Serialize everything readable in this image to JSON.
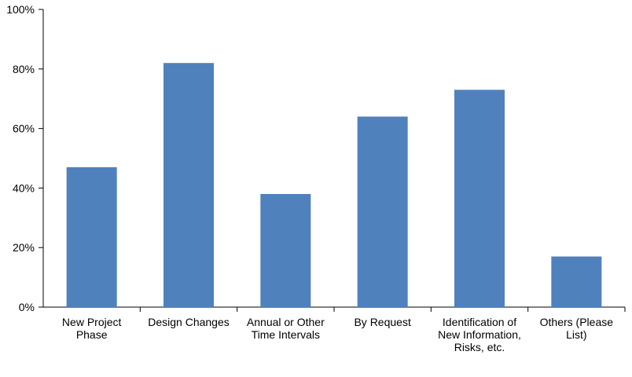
{
  "chart_data": {
    "type": "bar",
    "categories": [
      [
        "New Project",
        "Phase"
      ],
      [
        "Design Changes"
      ],
      [
        "Annual or Other",
        "Time Intervals"
      ],
      [
        "By Request"
      ],
      [
        "Identification of",
        "New Information,",
        "Risks, etc."
      ],
      [
        "Others (Please",
        "List)"
      ]
    ],
    "values": [
      47,
      82,
      38,
      64,
      73,
      17
    ],
    "yticks": [
      "0%",
      "20%",
      "40%",
      "60%",
      "80%",
      "100%"
    ],
    "ylim": [
      0,
      100
    ],
    "bar_color": "#4F81BD",
    "grid": false,
    "legend": "none"
  }
}
